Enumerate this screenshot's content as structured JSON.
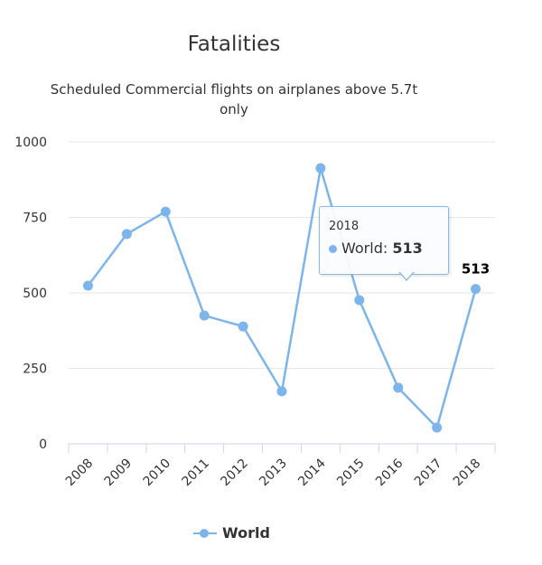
{
  "chart_data": {
    "type": "line",
    "title": "Fatalities",
    "subtitle_lines": [
      "Scheduled Commercial flights on airplanes above 5.7t",
      "only"
    ],
    "categories": [
      "2008",
      "2009",
      "2010",
      "2011",
      "2012",
      "2013",
      "2014",
      "2015",
      "2016",
      "2017",
      "2018"
    ],
    "series": [
      {
        "name": "World",
        "color": "#7cb5ec",
        "values": [
          524,
          695,
          769,
          425,
          389,
          174,
          913,
          476,
          186,
          54,
          513
        ]
      }
    ],
    "ylim": [
      0,
      1000
    ],
    "yticks": [
      "0",
      "250",
      "500",
      "750",
      "1000"
    ],
    "ytick_values": [
      0,
      250,
      500,
      750,
      1000
    ],
    "xlabel": "",
    "ylabel": "",
    "grid": true,
    "legend": "bottom-center",
    "data_label": {
      "category": "2018",
      "text": "513"
    },
    "tooltip": {
      "x": "2018",
      "series": "World: ",
      "value": "513"
    }
  }
}
